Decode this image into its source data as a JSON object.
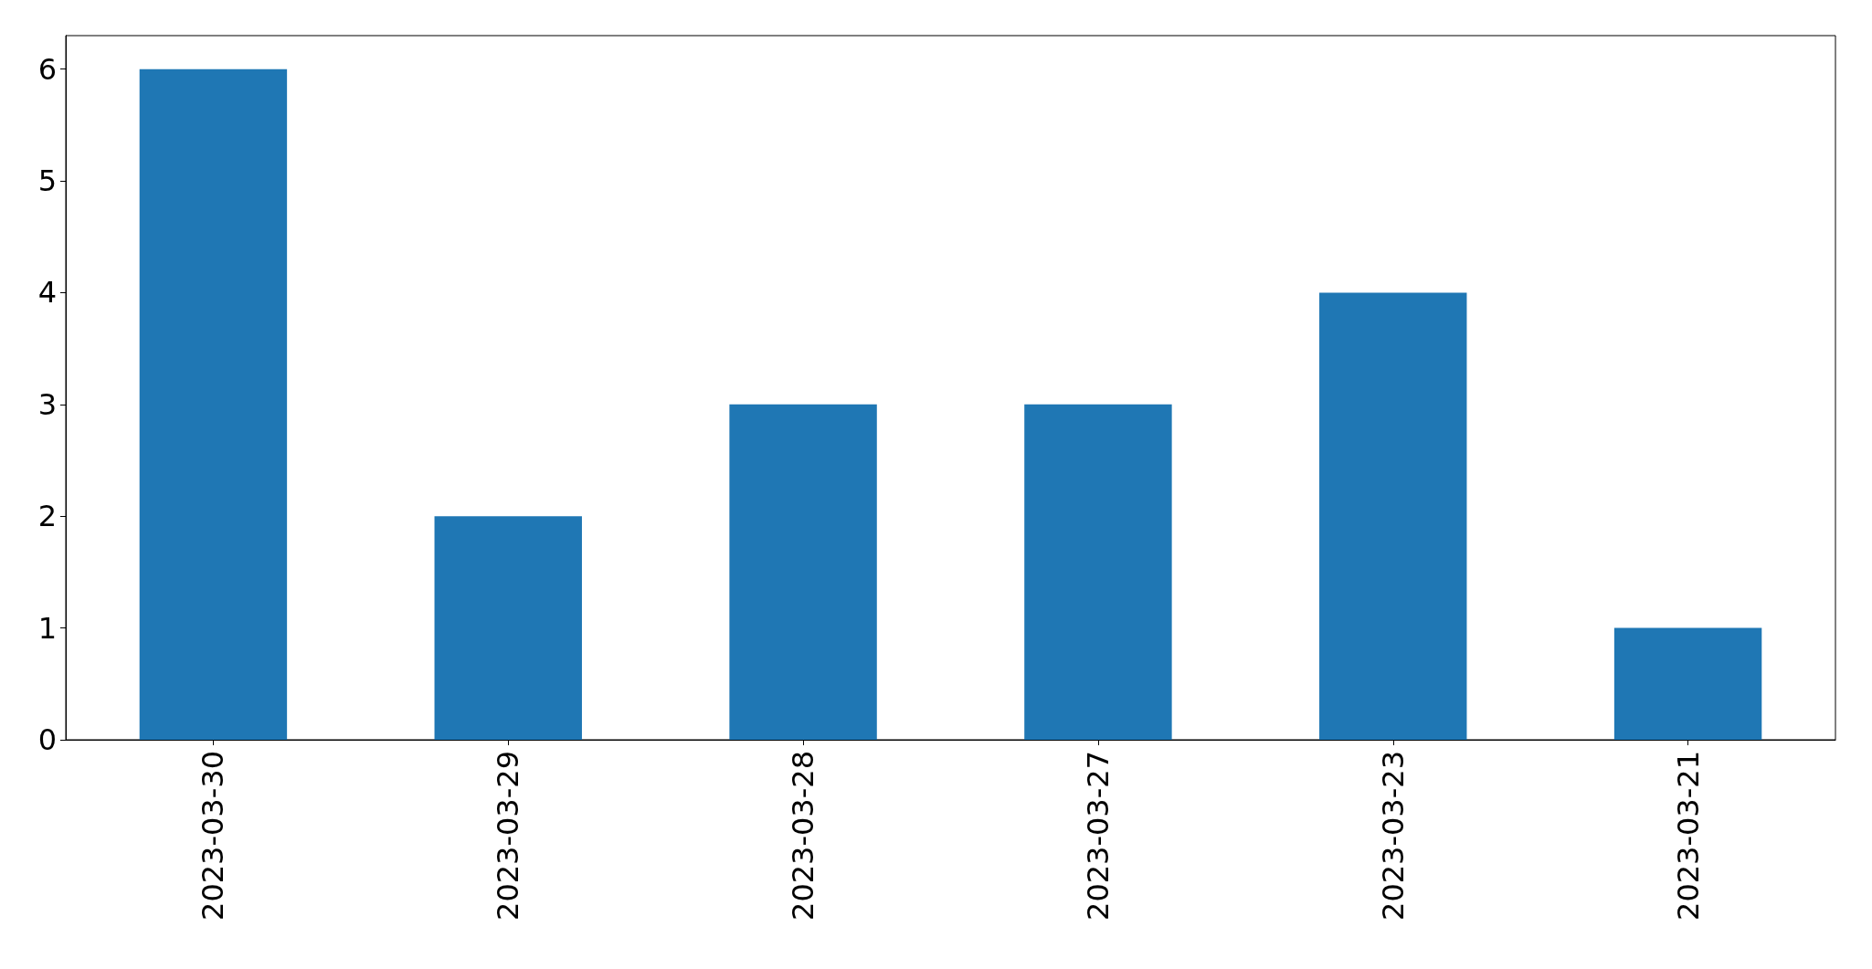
{
  "chart_data": {
    "type": "bar",
    "categories": [
      "2023-03-30",
      "2023-03-29",
      "2023-03-28",
      "2023-03-27",
      "2023-03-23",
      "2023-03-21"
    ],
    "values": [
      6,
      2,
      3,
      3,
      4,
      1
    ],
    "color": "#1f77b4",
    "ylim": [
      0,
      6.3
    ],
    "yticks": [
      0,
      1,
      2,
      3,
      4,
      5,
      6
    ],
    "grid": false
  }
}
